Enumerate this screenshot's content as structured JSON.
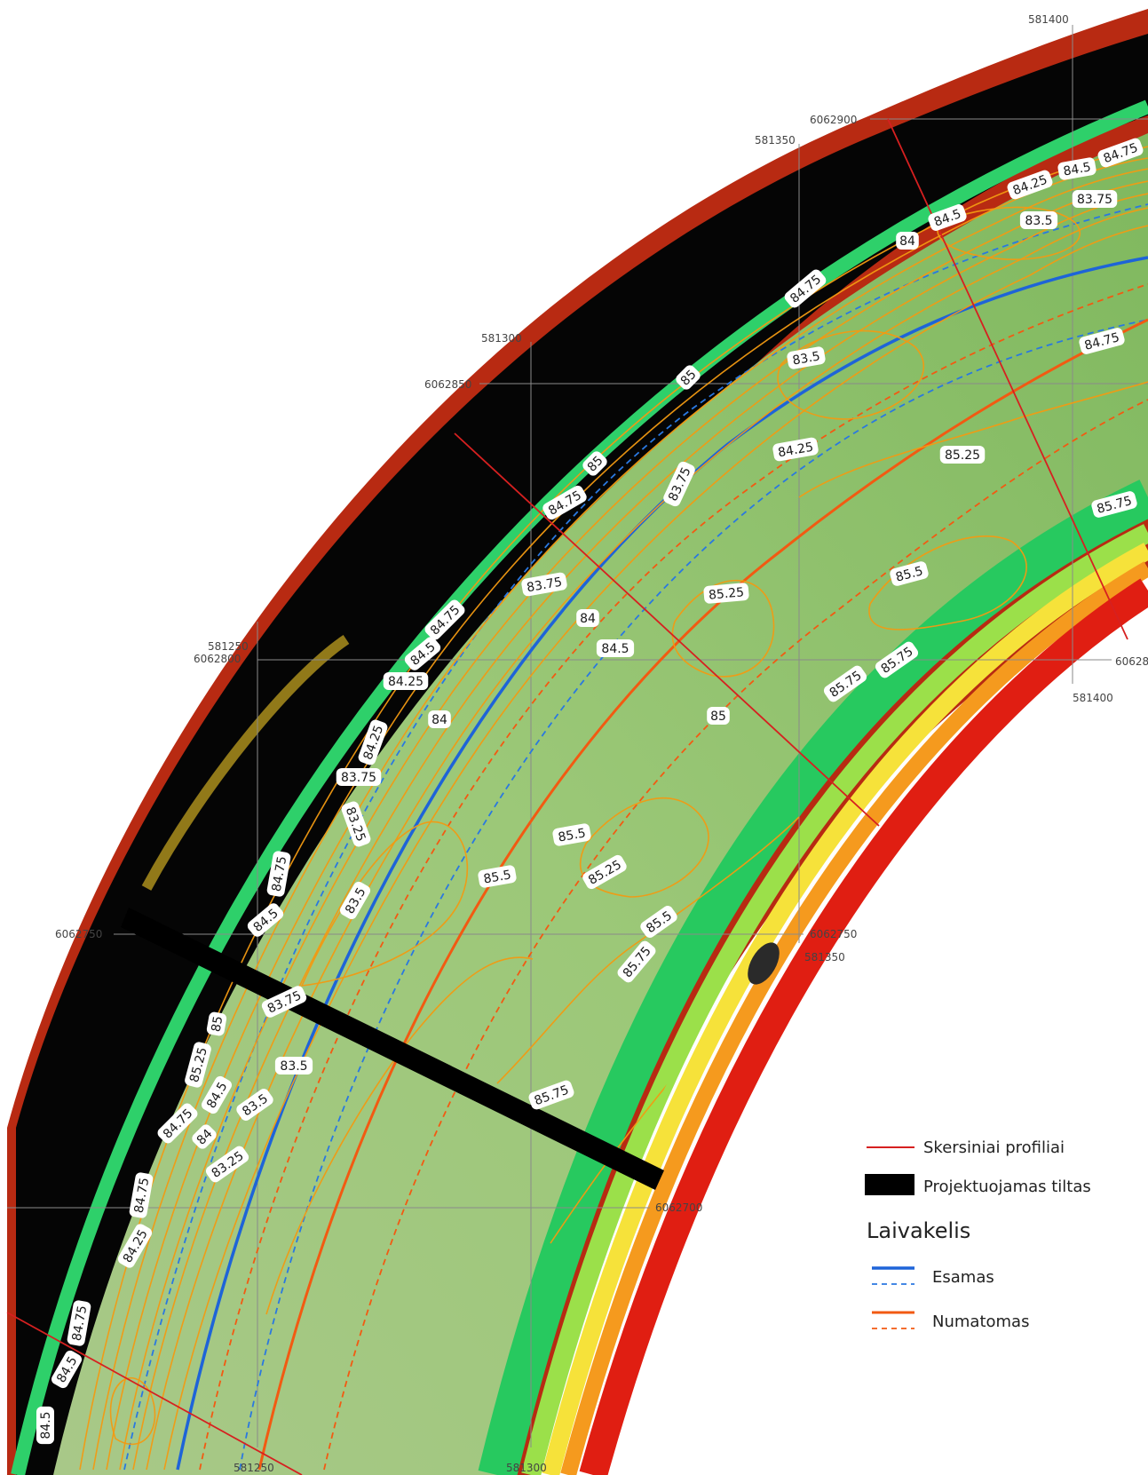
{
  "colors": {
    "cross_section": "#d62020",
    "bridge": "#000000",
    "fairway_existing": "#1e64d8",
    "fairway_planned": "#f25a12",
    "contour": "#f29a12",
    "bank_outer": "#b82a12",
    "bank_green": "#2ed06a",
    "bed_green": "#8cc46a"
  },
  "grid_labels": {
    "e_581250_top": "581250",
    "e_581300_top": "581300",
    "e_581350_top": "581350",
    "e_581400_top": "581400",
    "e_581250_bottom": "581250",
    "e_581300_bottom": "581300",
    "e_581350_mid": "581350",
    "e_581400_mid": "581400",
    "n_6062900": "6062900",
    "n_6062850": "6062850",
    "n_6062800": "6062800",
    "n_6062750_left": "6062750",
    "n_6062750_right": "6062750",
    "n_6062700": "6062700",
    "n_6062800_right": "60628"
  },
  "contour_labels": [
    "84.75",
    "84.5",
    "84.25",
    "83.75",
    "83.5",
    "84.5",
    "84",
    "84.75",
    "83.5",
    "84.75",
    "85",
    "85",
    "84.75",
    "83.75",
    "84.25",
    "85.25",
    "85.75",
    "83.75",
    "84",
    "84.5",
    "85.25",
    "85.5",
    "84.75",
    "84.5",
    "84.25",
    "84",
    "84.25",
    "83.75",
    "83.25",
    "85",
    "85.75",
    "85.75",
    "84.75",
    "85.5",
    "83.5",
    "84.5",
    "85.5",
    "85.25",
    "85.5",
    "85.75",
    "83.75",
    "85",
    "83.5",
    "85.25",
    "84.5",
    "84.75",
    "83.5",
    "84",
    "83.25",
    "85.75",
    "84.75",
    "84.25",
    "84.75",
    "84.5",
    "84.5"
  ],
  "legend": {
    "cross_sections": "Skersiniai profiliai",
    "bridge": "Projektuojamas tiltas",
    "fairway_title": "Laivakelis",
    "existing": "Esamas",
    "planned": "Numatomas"
  }
}
